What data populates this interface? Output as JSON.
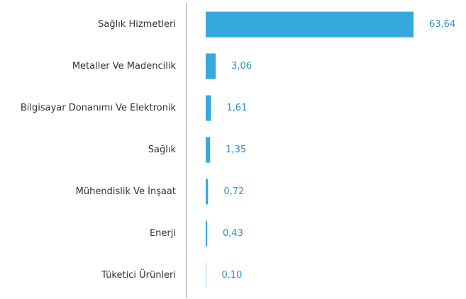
{
  "chart_data": {
    "type": "barh",
    "categories": [
      "Sağlık Hizmetleri",
      "Metaller Ve Madencilik",
      "Bilgisayar Donanımı Ve Elektronik",
      "Sağlık",
      "Mühendislik Ve İnşaat",
      "Enerji",
      "Tüketici Ürünleri"
    ],
    "values": [
      63.64,
      3.06,
      1.61,
      1.35,
      0.72,
      0.43,
      0.1
    ],
    "value_labels": [
      "63,64",
      "3,06",
      "1,61",
      "1,35",
      "0,72",
      "0,43",
      "0,10"
    ],
    "color": "#35a8dc"
  }
}
